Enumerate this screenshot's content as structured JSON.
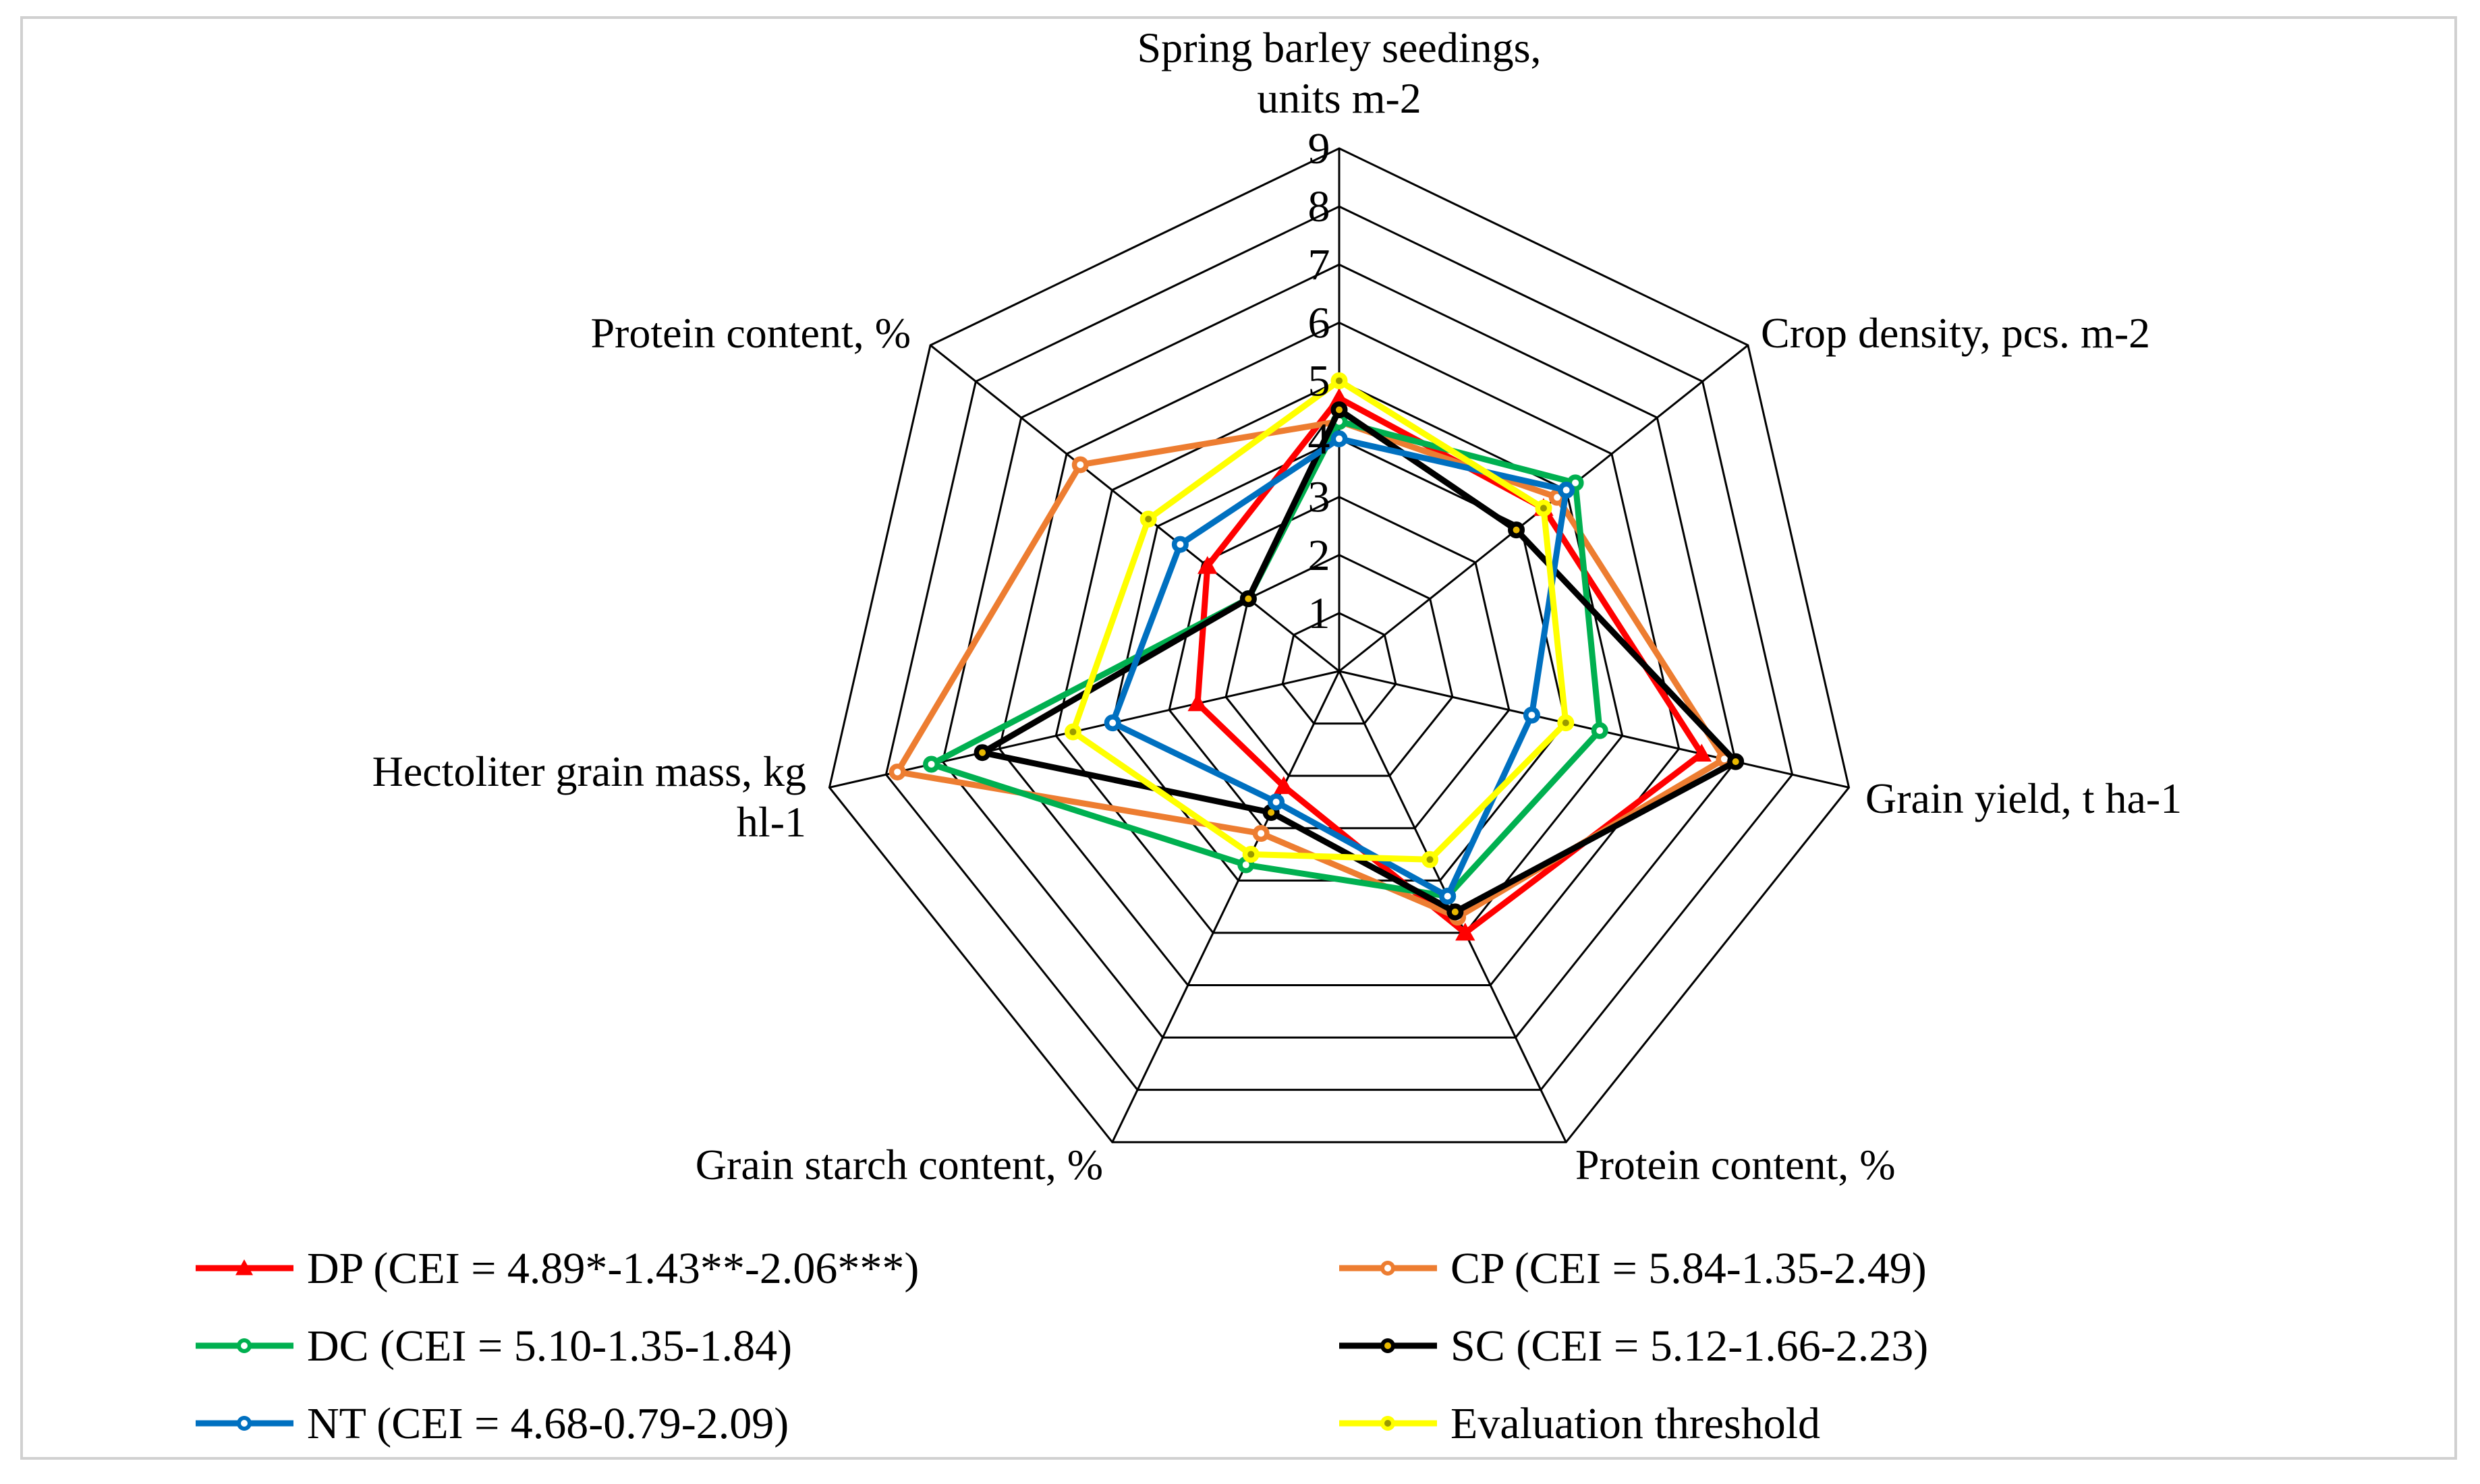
{
  "chart_data": {
    "type": "radar",
    "axes": [
      [
        "Spring barley seedings,",
        "units m-2"
      ],
      [
        "Crop density, pcs. m-2"
      ],
      [
        "Grain yield, t ha-1"
      ],
      [
        "Protein content, %"
      ],
      [
        "Grain starch content, %"
      ],
      [
        "Hectoliter grain mass, kg",
        "hl-1"
      ],
      [
        "Protein content, %"
      ]
    ],
    "range": [
      0,
      9
    ],
    "ticks": [
      1,
      2,
      3,
      4,
      5,
      6,
      7,
      8,
      9
    ],
    "series": [
      {
        "name": "DP (CEI = 4.89*-1.43**-2.06***)",
        "color": "#ff0000",
        "marker": "triangle",
        "values": [
          4.7,
          4.5,
          6.4,
          5.0,
          2.2,
          2.5,
          2.9
        ]
      },
      {
        "name": "CP (CEI = 5.84-1.35-2.49)",
        "color": "#ed7d31",
        "marker": "circle",
        "values": [
          4.3,
          4.8,
          6.8,
          4.7,
          3.1,
          7.8,
          5.7
        ]
      },
      {
        "name": "DC (CEI = 5.10-1.35-1.84)",
        "color": "#00b050",
        "marker": "circle",
        "values": [
          4.3,
          5.2,
          4.6,
          4.3,
          3.7,
          7.2,
          2.0
        ]
      },
      {
        "name": "SC (CEI = 5.12-1.66-2.23)",
        "color": "#000000",
        "marker": "circle",
        "values": [
          4.5,
          3.9,
          7.0,
          4.6,
          2.7,
          6.3,
          2.0
        ]
      },
      {
        "name": "NT (CEI = 4.68-0.79-2.09)",
        "color": "#0070c0",
        "marker": "circle",
        "values": [
          4.0,
          5.0,
          3.4,
          4.3,
          2.5,
          4.0,
          3.5
        ]
      },
      {
        "name": "Evaluation threshold",
        "color": "#ffff00",
        "marker": "circle",
        "values": [
          5.0,
          4.5,
          4.0,
          3.6,
          3.5,
          4.7,
          4.2
        ]
      }
    ]
  }
}
